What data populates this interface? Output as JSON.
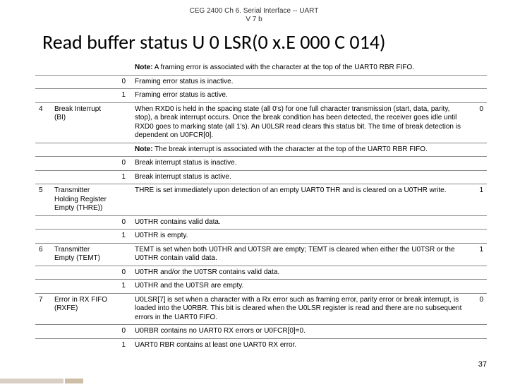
{
  "header_sub_l1": "CEG 2400 Ch 6. Serial Interface -- UART",
  "header_sub_l2": "V 7 b",
  "title": "Read buffer status U 0 LSR(0 x.E 000 C 014)",
  "page_number": "37",
  "rows": [
    {
      "bit": "",
      "name": "",
      "val": "",
      "desc": "<b>Note:</b> A framing error is associated with the character at the top of the UART0 RBR FIFO.",
      "rst": ""
    },
    {
      "bit": "",
      "name": "",
      "val": "0",
      "desc": "Framing error status is inactive.",
      "rst": ""
    },
    {
      "bit": "",
      "name": "",
      "val": "1",
      "desc": "Framing error status is active.",
      "rst": ""
    },
    {
      "bit": "4",
      "name": "Break Interrupt (BI)",
      "val": "",
      "desc": "When RXD0 is held in the spacing state (all 0's) for one full character transmission (start, data, parity, stop), a break interrupt occurs. Once the break condition has been detected, the receiver goes idle until RXD0 goes to marking state (all 1's). An U0LSR read clears this status bit. The time of break detection is dependent on U0FCR[0].",
      "rst": "0"
    },
    {
      "bit": "",
      "name": "",
      "val": "",
      "desc": "<b>Note:</b> The break interrupt is associated with the character at the top of the UART0 RBR FIFO.",
      "rst": ""
    },
    {
      "bit": "",
      "name": "",
      "val": "0",
      "desc": "Break interrupt status is inactive.",
      "rst": ""
    },
    {
      "bit": "",
      "name": "",
      "val": "1",
      "desc": "Break interrupt status is active.",
      "rst": ""
    },
    {
      "bit": "5",
      "name": "Transmitter Holding Register Empty (THRE))",
      "val": "",
      "desc": "THRE is set immediately upon detection of an empty UART0 THR and is cleared on a U0THR write.",
      "rst": "1"
    },
    {
      "bit": "",
      "name": "",
      "val": "0",
      "desc": "U0THR contains valid data.",
      "rst": ""
    },
    {
      "bit": "",
      "name": "",
      "val": "1",
      "desc": "U0THR is empty.",
      "rst": ""
    },
    {
      "bit": "6",
      "name": "Transmitter Empty (TEMT)",
      "val": "",
      "desc": "TEMT is set when both U0THR and U0TSR are empty; TEMT is cleared when either the U0TSR or the U0THR contain valid data.",
      "rst": "1"
    },
    {
      "bit": "",
      "name": "",
      "val": "0",
      "desc": "U0THR and/or the U0TSR contains valid data.",
      "rst": ""
    },
    {
      "bit": "",
      "name": "",
      "val": "1",
      "desc": "U0THR and the U0TSR are empty.",
      "rst": ""
    },
    {
      "bit": "7",
      "name": "Error in RX FIFO (RXFE)",
      "val": "",
      "desc": "U0LSR[7] is set when a character with a Rx error such as framing error, parity error or break interrupt, is loaded into the U0RBR. This bit is cleared when the U0LSR register is read and there are no subsequent errors in the UART0 FIFO.",
      "rst": "0"
    },
    {
      "bit": "",
      "name": "",
      "val": "0",
      "desc": "U0RBR contains no UART0 RX errors or U0FCR[0]=0.",
      "rst": ""
    },
    {
      "bit": "",
      "name": "",
      "val": "1",
      "desc": "UART0 RBR contains at least one UART0 RX error.",
      "rst": ""
    }
  ]
}
